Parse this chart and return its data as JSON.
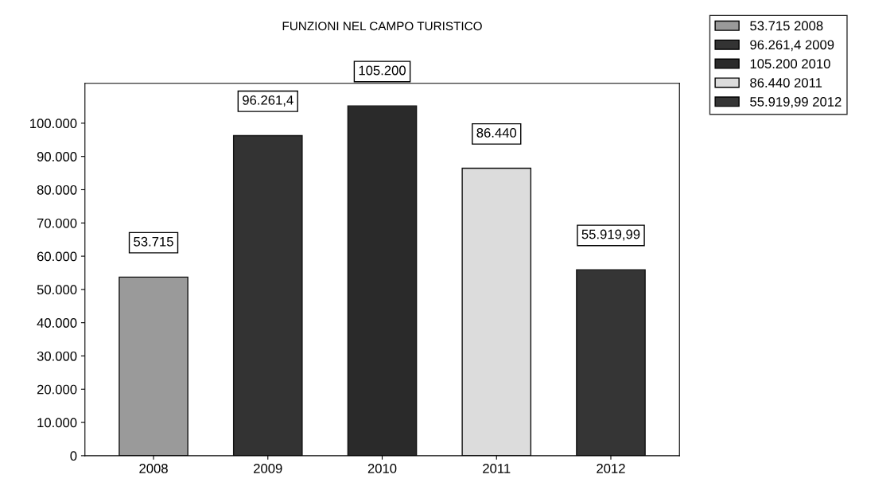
{
  "chart_data": {
    "type": "bar",
    "title": "FUNZIONI NEL CAMPO TURISTICO",
    "categories": [
      "2008",
      "2009",
      "2010",
      "2011",
      "2012"
    ],
    "series": [
      {
        "name": "53.715 2008",
        "color": "#9a9a9a",
        "values": [
          53715,
          null,
          null,
          null,
          null
        ],
        "value_labels": [
          "53.715",
          null,
          null,
          null,
          null
        ]
      },
      {
        "name": "96.261,4 2009",
        "color": "#333333",
        "values": [
          null,
          96261.4,
          null,
          null,
          null
        ],
        "value_labels": [
          null,
          "96.261,4",
          null,
          null,
          null
        ]
      },
      {
        "name": "105.200 2010",
        "color": "#2a2a2a",
        "values": [
          null,
          null,
          105200,
          null,
          null
        ],
        "value_labels": [
          null,
          null,
          "105.200",
          null,
          null
        ]
      },
      {
        "name": "86.440 2011",
        "color": "#dcdcdc",
        "values": [
          null,
          null,
          null,
          86440,
          null
        ],
        "value_labels": [
          null,
          null,
          null,
          "86.440",
          null
        ]
      },
      {
        "name": "55.919,99 2012",
        "color": "#353535",
        "values": [
          null,
          null,
          null,
          null,
          55919.99
        ],
        "value_labels": [
          null,
          null,
          null,
          null,
          "55.919,99"
        ]
      }
    ],
    "ylim": [
      0,
      112000
    ],
    "yticks": [
      {
        "value": 0,
        "label": "0"
      },
      {
        "value": 10000,
        "label": "10.000"
      },
      {
        "value": 20000,
        "label": "20.000"
      },
      {
        "value": 30000,
        "label": "30.000"
      },
      {
        "value": 40000,
        "label": "40.000"
      },
      {
        "value": 50000,
        "label": "50.000"
      },
      {
        "value": 60000,
        "label": "60.000"
      },
      {
        "value": 70000,
        "label": "70.000"
      },
      {
        "value": 80000,
        "label": "80.000"
      },
      {
        "value": 90000,
        "label": "90.000"
      },
      {
        "value": 100000,
        "label": "100.000"
      }
    ],
    "legend": "top right"
  }
}
